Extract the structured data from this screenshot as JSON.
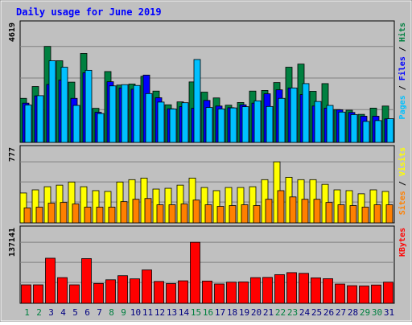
{
  "chart_data": {
    "type": "bar",
    "title": "Daily usage for June 2019",
    "colors": {
      "background": "#c0c0c0",
      "hits": "#008040",
      "files": "#0000ff",
      "pages": "#00c0ff",
      "visits": "#ffff00",
      "sites": "#ff8000",
      "kbytes": "#ff0000",
      "title": "#0000ff",
      "weekend_day": "#008040",
      "weekday": "#000080"
    },
    "days": [
      "1",
      "2",
      "3",
      "4",
      "5",
      "6",
      "7",
      "8",
      "9",
      "10",
      "11",
      "12",
      "13",
      "14",
      "15",
      "16",
      "17",
      "18",
      "19",
      "20",
      "21",
      "22",
      "23",
      "24",
      "25",
      "26",
      "27",
      "28",
      "29",
      "30",
      "31"
    ],
    "weekend_days": [
      "1",
      "2",
      "8",
      "9",
      "15",
      "16",
      "22",
      "23",
      "29",
      "30"
    ],
    "panels": [
      {
        "id": "top",
        "max_label": "4619",
        "max": 4619,
        "legend": [
          {
            "label": "Hits",
            "color": "#008040"
          },
          {
            "label": "Files",
            "color": "#0000ff"
          },
          {
            "label": "Pages",
            "color": "#00c0ff"
          }
        ],
        "series": [
          {
            "name": "Hits",
            "color": "#008040",
            "values": [
              2120,
              2690,
              4619,
              3930,
              2900,
              4280,
              1640,
              3410,
              2760,
              2810,
              3180,
              2470,
              1810,
              1950,
              2910,
              2420,
              2140,
              1790,
              1920,
              2470,
              2500,
              2880,
              3620,
              3770,
              2460,
              2830,
              1580,
              1550,
              1350,
              1650,
              1750
            ]
          },
          {
            "name": "Files",
            "color": "#0000ff",
            "values": [
              1890,
              2240,
              2790,
              3000,
              2120,
              3350,
              1450,
              2920,
              2620,
              2560,
              3240,
              2150,
              1620,
              1720,
              1640,
              2020,
              1750,
              1670,
              1810,
              1890,
              2340,
              2530,
              2620,
              2300,
              1750,
              1650,
              1570,
              1440,
              1260,
              1260,
              1130
            ]
          },
          {
            "name": "Pages",
            "color": "#00c0ff",
            "values": [
              1800,
              2250,
              3930,
              3620,
              1780,
              3470,
              1390,
              2720,
              2780,
              2740,
              2350,
              1940,
              1610,
              1910,
              3990,
              1680,
              1610,
              1660,
              1720,
              2000,
              1730,
              2120,
              2620,
              2830,
              1970,
              1780,
              1460,
              1340,
              1010,
              1050,
              1140
            ]
          }
        ]
      },
      {
        "id": "middle",
        "max_label": "777",
        "max": 777,
        "legend": [
          {
            "label": "Visits",
            "color": "#ffff00"
          },
          {
            "label": "Sites",
            "color": "#ff8000"
          }
        ],
        "series": [
          {
            "name": "Visits",
            "color": "#ffff00",
            "values": [
              380,
              420,
              460,
              480,
              520,
              460,
              410,
              400,
              520,
              550,
              570,
              430,
              440,
              480,
              570,
              450,
              410,
              450,
              450,
              460,
              550,
              777,
              580,
              550,
              550,
              490,
              420,
              410,
              370,
              420,
              400
            ]
          },
          {
            "name": "Sites",
            "color": "#ff8000",
            "values": [
              190,
              200,
              250,
              260,
              240,
              200,
              200,
              200,
              270,
              300,
              310,
              230,
              230,
              240,
              290,
              230,
              210,
              220,
              230,
              220,
              300,
              410,
              330,
              300,
              300,
              260,
              230,
              220,
              200,
              230,
              230
            ]
          }
        ]
      },
      {
        "id": "bottom",
        "max_label": "137141",
        "max": 137141,
        "legend": [
          {
            "label": "KBytes",
            "color": "#ff0000"
          }
        ],
        "series": [
          {
            "name": "KBytes",
            "color": "#ff0000",
            "values": [
              41500,
              41500,
              101300,
              57700,
              41500,
              100400,
              44600,
              52800,
              62000,
              54900,
              75000,
              49100,
              44300,
              50500,
              137141,
              50000,
              43400,
              47500,
              48000,
              57700,
              58200,
              64400,
              68900,
              67300,
              57200,
              55300,
              43300,
              39600,
              38900,
              41100,
              47500
            ]
          }
        ]
      }
    ]
  }
}
